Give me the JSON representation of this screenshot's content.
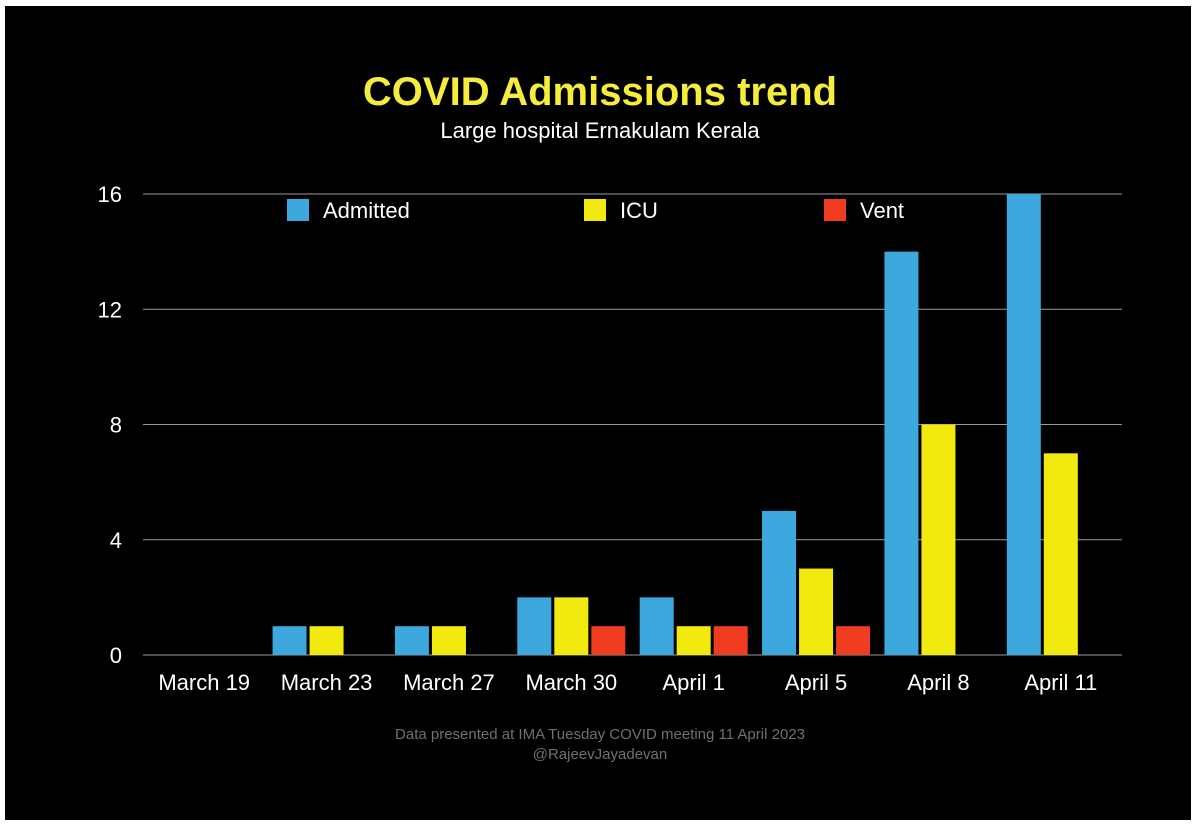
{
  "chart_data": {
    "type": "bar",
    "title": "COVID Admissions trend",
    "subtitle": "Large hospital Ernakulam Kerala",
    "categories": [
      "March 19",
      "March 23",
      "March 27",
      "March 30",
      "April 1",
      "April 5",
      "April 8",
      "April 11"
    ],
    "series": [
      {
        "name": "Admitted",
        "color": "#3ca8de",
        "values": [
          0,
          1,
          1,
          2,
          2,
          5,
          14,
          16
        ]
      },
      {
        "name": "ICU",
        "color": "#f2ea0f",
        "values": [
          0,
          1,
          1,
          2,
          1,
          3,
          8,
          7
        ]
      },
      {
        "name": "Vent",
        "color": "#f03d22",
        "values": [
          0,
          0,
          0,
          1,
          1,
          1,
          0,
          0
        ]
      }
    ],
    "ylim": [
      0,
      16
    ],
    "yticks": [
      0,
      4,
      8,
      12,
      16
    ],
    "grid": true,
    "legend_position": "top",
    "footnote": "Data presented at IMA Tuesday COVID meeting 11 April 2023",
    "credit": "@RajeevJayadevan"
  }
}
